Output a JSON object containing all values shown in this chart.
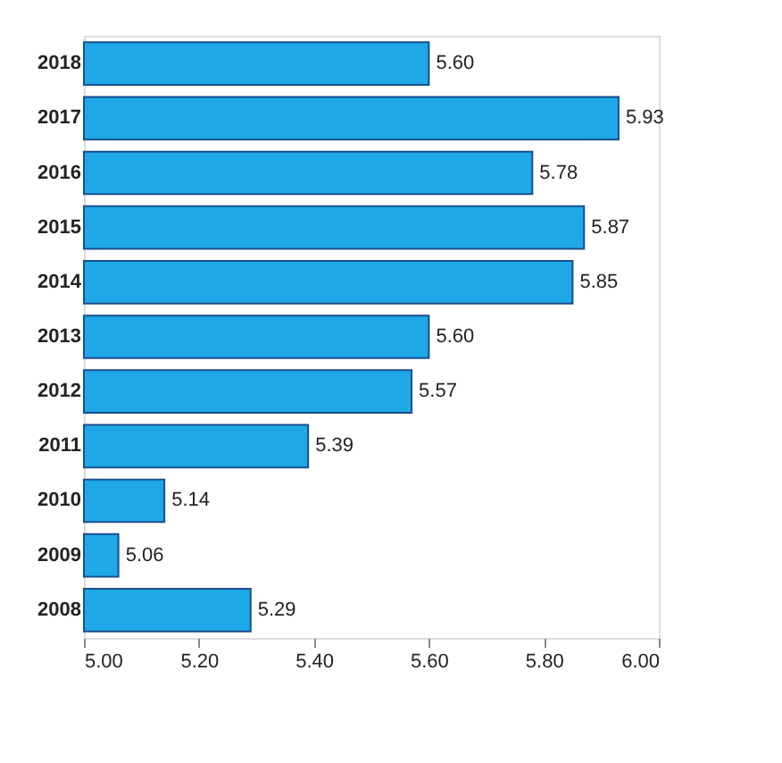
{
  "chart_data": {
    "type": "bar",
    "orientation": "horizontal",
    "categories": [
      "2018",
      "2017",
      "2016",
      "2015",
      "2014",
      "2013",
      "2012",
      "2011",
      "2010",
      "2009",
      "2008"
    ],
    "values": [
      5.6,
      5.93,
      5.78,
      5.87,
      5.85,
      5.6,
      5.57,
      5.39,
      5.14,
      5.06,
      5.29
    ],
    "value_labels": [
      "5.60",
      "5.93",
      "5.78",
      "5.87",
      "5.85",
      "5.60",
      "5.57",
      "5.39",
      "5.14",
      "5.06",
      "5.29"
    ],
    "color": "#1ea8e8",
    "xlim": [
      5.0,
      6.0
    ],
    "xticks": [
      {
        "value": 5.0,
        "label": "5.00"
      },
      {
        "value": 5.2,
        "label": "5.20"
      },
      {
        "value": 5.4,
        "label": "5.40"
      },
      {
        "value": 5.6,
        "label": "5.60"
      },
      {
        "value": 5.8,
        "label": "5.80"
      },
      {
        "value": 6.0,
        "label": "6.00"
      }
    ],
    "grid": false
  }
}
